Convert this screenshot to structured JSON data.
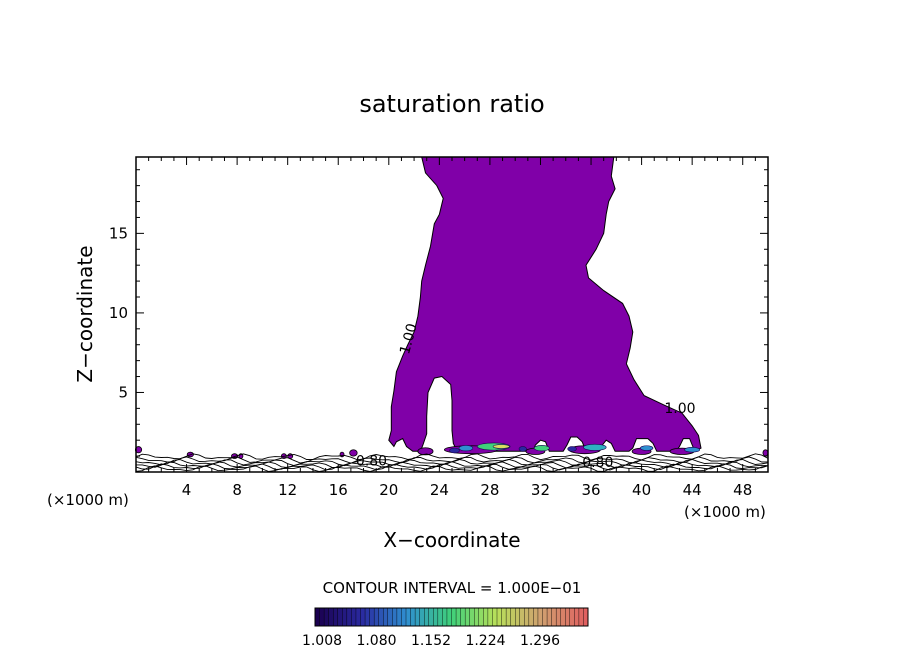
{
  "chart_data": {
    "type": "contour",
    "title": "saturation ratio",
    "xlabel": "X−coordinate",
    "ylabel": "Z−coordinate",
    "x_unit_left": "(×1000 m)",
    "x_unit_right": "(×1000 m)",
    "xlim": [
      0,
      50
    ],
    "ylim": [
      0,
      19.8
    ],
    "x_ticks": [
      4,
      8,
      12,
      16,
      20,
      24,
      28,
      32,
      36,
      40,
      44,
      48
    ],
    "y_ticks": [
      5,
      10,
      15
    ],
    "contour_labels": [
      {
        "text": "1.00",
        "x": 21.9,
        "y": 8.3
      },
      {
        "text": "1.00",
        "x": 41.8,
        "y": 3.7
      },
      {
        "text": "0.80",
        "x": 17.4,
        "y": 0.4
      },
      {
        "text": "0.80",
        "x": 35.3,
        "y": 0.3
      }
    ],
    "contour_interval_text": "CONTOUR INTERVAL = 1.000E−01",
    "colorbar": {
      "colors": [
        "#1a0050",
        "#2a2aa0",
        "#2f8fd0",
        "#3fd07a",
        "#b8e05a",
        "#d0a070",
        "#e06060"
      ],
      "labels": [
        "1.008",
        "1.080",
        "1.152",
        "1.224",
        "1.296"
      ]
    },
    "cloud_color": "#8000a8",
    "cloud_outline": [
      [
        22.6,
        19.8
      ],
      [
        37.8,
        19.8
      ],
      [
        37.6,
        18.6
      ],
      [
        37.9,
        17.8
      ],
      [
        37.4,
        17.0
      ],
      [
        37.2,
        16.2
      ],
      [
        37.0,
        15.0
      ],
      [
        36.4,
        14.0
      ],
      [
        35.6,
        13.0
      ],
      [
        35.8,
        12.2
      ],
      [
        37.0,
        11.4
      ],
      [
        38.5,
        10.6
      ],
      [
        39.0,
        9.8
      ],
      [
        39.3,
        8.8
      ],
      [
        39.1,
        7.8
      ],
      [
        38.8,
        6.8
      ],
      [
        39.4,
        5.8
      ],
      [
        40.2,
        4.8
      ],
      [
        41.8,
        4.2
      ],
      [
        43.2,
        3.7
      ],
      [
        44.0,
        2.9
      ],
      [
        44.5,
        2.3
      ],
      [
        44.7,
        1.5
      ],
      [
        44.2,
        1.3
      ],
      [
        44.0,
        1.7
      ],
      [
        43.8,
        2.1
      ],
      [
        43.3,
        2.1
      ],
      [
        43.0,
        1.6
      ],
      [
        42.7,
        1.3
      ],
      [
        41.2,
        1.3
      ],
      [
        40.9,
        1.8
      ],
      [
        40.5,
        2.1
      ],
      [
        39.6,
        2.1
      ],
      [
        39.3,
        1.5
      ],
      [
        39.0,
        1.3
      ],
      [
        37.9,
        1.3
      ],
      [
        37.6,
        1.8
      ],
      [
        37.2,
        2.0
      ],
      [
        36.9,
        1.7
      ],
      [
        36.6,
        1.3
      ],
      [
        35.6,
        1.3
      ],
      [
        35.3,
        1.9
      ],
      [
        34.9,
        2.2
      ],
      [
        34.4,
        2.2
      ],
      [
        34.1,
        1.7
      ],
      [
        33.8,
        1.3
      ],
      [
        32.7,
        1.3
      ],
      [
        32.4,
        1.9
      ],
      [
        32.0,
        2.0
      ],
      [
        31.6,
        1.7
      ],
      [
        31.4,
        1.3
      ],
      [
        25.4,
        1.3
      ],
      [
        25.1,
        1.8
      ],
      [
        25.0,
        2.6
      ],
      [
        25.0,
        4.5
      ],
      [
        24.9,
        5.5
      ],
      [
        24.2,
        6.0
      ],
      [
        23.6,
        5.9
      ],
      [
        23.1,
        5.0
      ],
      [
        23.0,
        3.5
      ],
      [
        23.0,
        2.4
      ],
      [
        22.7,
        1.7
      ],
      [
        22.5,
        1.3
      ],
      [
        21.9,
        1.3
      ],
      [
        21.4,
        1.6
      ],
      [
        21.1,
        2.1
      ],
      [
        20.6,
        1.9
      ],
      [
        20.4,
        1.6
      ],
      [
        20.0,
        2.0
      ],
      [
        20.2,
        2.6
      ],
      [
        20.2,
        4.1
      ],
      [
        20.4,
        5.1
      ],
      [
        20.6,
        6.3
      ],
      [
        21.1,
        7.3
      ],
      [
        21.5,
        8.0
      ],
      [
        22.0,
        8.8
      ],
      [
        22.3,
        9.8
      ],
      [
        22.5,
        11.0
      ],
      [
        22.6,
        12.0
      ],
      [
        22.9,
        13.0
      ],
      [
        23.3,
        14.2
      ],
      [
        23.6,
        15.6
      ],
      [
        24.0,
        16.2
      ],
      [
        24.3,
        17.2
      ],
      [
        23.8,
        18.0
      ],
      [
        22.9,
        18.8
      ]
    ],
    "near_surface_blobs": [
      [
        0.2,
        1.4,
        0.5,
        0.4
      ],
      [
        4.3,
        1.1,
        0.5,
        0.3
      ],
      [
        7.8,
        1.0,
        0.5,
        0.3
      ],
      [
        8.3,
        1.0,
        0.3,
        0.3
      ],
      [
        11.7,
        1.0,
        0.4,
        0.3
      ],
      [
        12.2,
        1.0,
        0.4,
        0.3
      ],
      [
        16.3,
        1.1,
        0.3,
        0.3
      ],
      [
        17.2,
        1.2,
        0.6,
        0.4
      ],
      [
        22.9,
        1.3,
        1.2,
        0.45
      ],
      [
        26.5,
        1.4,
        4.2,
        0.5
      ],
      [
        31.6,
        1.3,
        1.5,
        0.4
      ],
      [
        35.5,
        1.4,
        2.5,
        0.5
      ],
      [
        40.0,
        1.3,
        1.5,
        0.4
      ],
      [
        43.2,
        1.3,
        1.9,
        0.4
      ],
      [
        49.8,
        1.2,
        0.4,
        0.4
      ]
    ],
    "supersat_patches": [
      {
        "x": 26.1,
        "y": 1.5,
        "w": 1.1,
        "h": 0.35,
        "color": "#2f8fd0"
      },
      {
        "x": 28.3,
        "y": 1.6,
        "w": 2.6,
        "h": 0.45,
        "color": "#3fd07a"
      },
      {
        "x": 28.9,
        "y": 1.6,
        "w": 1.3,
        "h": 0.25,
        "color": "#d8e060"
      },
      {
        "x": 32.1,
        "y": 1.5,
        "w": 1.2,
        "h": 0.35,
        "color": "#3fd07a"
      },
      {
        "x": 36.3,
        "y": 1.55,
        "w": 1.8,
        "h": 0.4,
        "color": "#2fb0c0"
      },
      {
        "x": 40.4,
        "y": 1.5,
        "w": 1.0,
        "h": 0.3,
        "color": "#2f8fd0"
      },
      {
        "x": 44.0,
        "y": 1.4,
        "w": 1.2,
        "h": 0.3,
        "color": "#2f8fd0"
      },
      {
        "x": 25.2,
        "y": 1.35,
        "w": 0.8,
        "h": 0.3,
        "color": "#2a2aa0"
      },
      {
        "x": 30.6,
        "y": 1.45,
        "w": 0.6,
        "h": 0.3,
        "color": "#2a2aa0"
      },
      {
        "x": 34.5,
        "y": 1.45,
        "w": 0.7,
        "h": 0.3,
        "color": "#2a2aa0"
      }
    ],
    "surface_contour_levels": [
      0.95,
      0.75,
      0.6,
      0.45,
      0.32,
      0.2
    ]
  }
}
